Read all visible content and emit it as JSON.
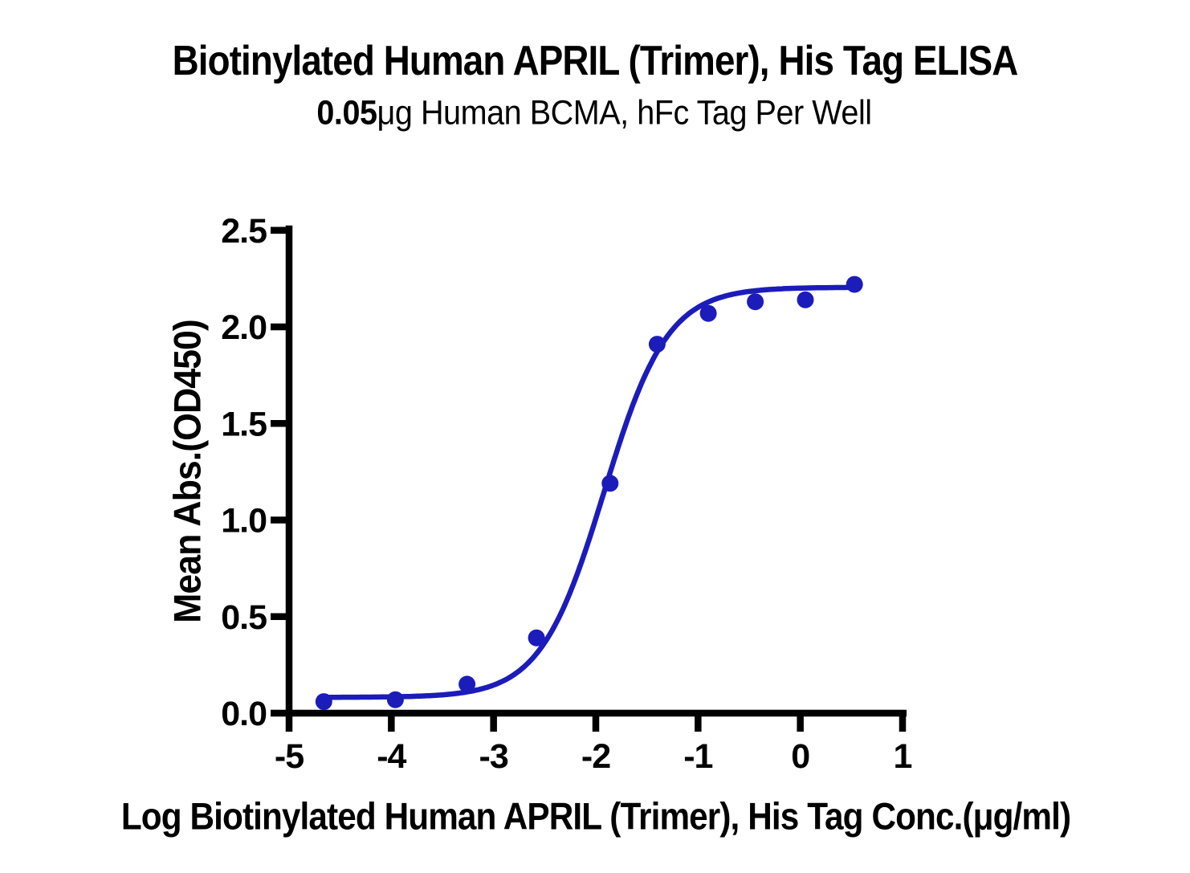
{
  "chart": {
    "title": "Biotinylated Human APRIL (Trimer), His Tag ELISA",
    "subtitle_bold": "0.05",
    "subtitle_rest": "μg Human BCMA, hFc Tag Per Well",
    "xlabel": "Log Biotinylated Human APRIL (Trimer), His Tag Conc.(μg/ml)",
    "ylabel": "Mean Abs.(OD450)"
  },
  "chart_data": {
    "type": "scatter",
    "title": "Biotinylated Human APRIL (Trimer), His Tag ELISA",
    "subtitle": "0.05μg Human BCMA, hFc Tag Per Well",
    "xlabel": "Log Biotinylated Human APRIL (Trimer), His Tag Conc.(μg/ml)",
    "ylabel": "Mean Abs.(OD450)",
    "xlim": [
      -5,
      1
    ],
    "ylim": [
      0.0,
      2.5
    ],
    "x_tick_labels": [
      "-5",
      "-4",
      "-3",
      "-2",
      "-1",
      "0",
      "1"
    ],
    "y_tick_labels": [
      "0.0",
      "0.5",
      "1.0",
      "1.5",
      "2.0",
      "2.5"
    ],
    "grid": false,
    "legend": "none",
    "axis_color": "#000000",
    "curve_color": "#1C1CBB",
    "point_color": "#1C1CBB",
    "series": [
      {
        "name": "Biotinylated Human APRIL (Trimer), His Tag",
        "x": [
          -4.66,
          -3.96,
          -3.26,
          -2.58,
          -1.86,
          -1.4,
          -0.9,
          -0.44,
          0.05,
          0.53
        ],
        "y": [
          0.06,
          0.07,
          0.15,
          0.39,
          1.19,
          1.91,
          2.07,
          2.13,
          2.14,
          2.22
        ],
        "fit_4pl": {
          "model": "4PL",
          "bottom": 0.082,
          "top": 2.205,
          "logEC50": -1.92,
          "hillslope": 1.4,
          "x_start": -4.66,
          "x_end": 0.53
        }
      }
    ]
  }
}
